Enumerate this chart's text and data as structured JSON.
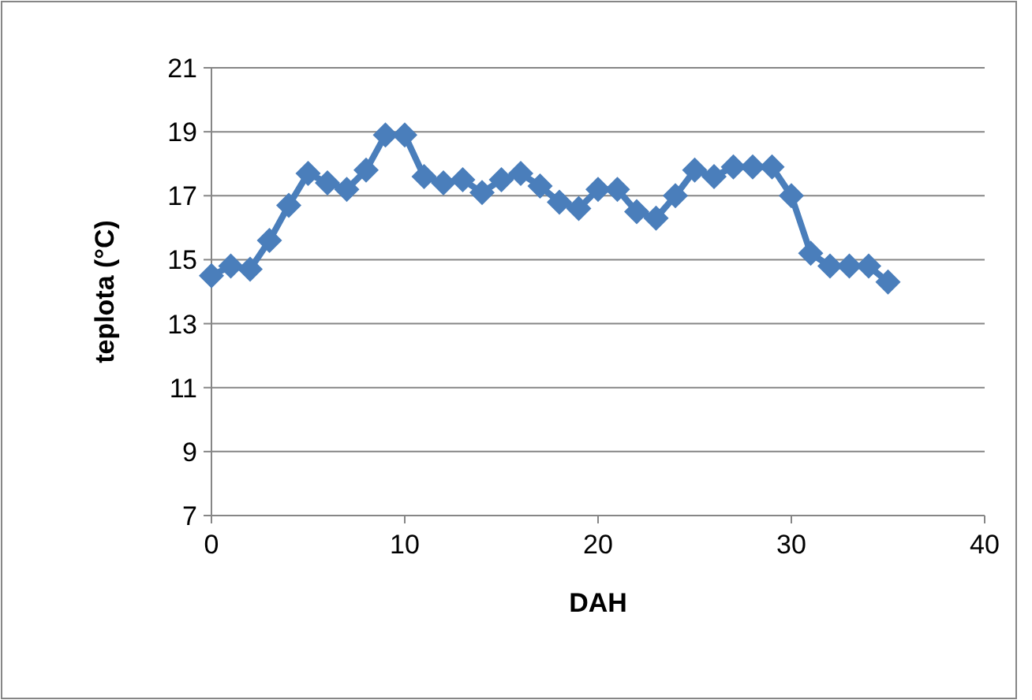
{
  "chart_data": {
    "type": "line",
    "xlabel": "DAH",
    "ylabel": "teplota (°C)",
    "x": [
      0,
      1,
      2,
      3,
      4,
      5,
      6,
      7,
      8,
      9,
      10,
      11,
      12,
      13,
      14,
      15,
      16,
      17,
      18,
      19,
      20,
      21,
      22,
      23,
      24,
      25,
      26,
      27,
      28,
      29,
      30,
      31,
      32,
      33,
      34,
      35
    ],
    "series": [
      {
        "color": "#4a7ebb",
        "values": [
          14.5,
          14.8,
          14.7,
          15.6,
          16.7,
          17.7,
          17.4,
          17.2,
          17.8,
          18.9,
          18.9,
          17.6,
          17.4,
          17.5,
          17.1,
          17.5,
          17.7,
          17.3,
          16.8,
          16.6,
          17.2,
          17.2,
          16.5,
          16.3,
          17.0,
          17.8,
          17.6,
          17.9,
          17.9,
          17.9,
          17.0,
          15.2,
          14.8,
          14.8,
          14.8,
          14.3
        ]
      }
    ],
    "xlim": [
      0,
      40
    ],
    "xticks": [
      0,
      10,
      20,
      30,
      40
    ],
    "ylim": [
      7,
      21
    ],
    "yticks": [
      7,
      9,
      11,
      13,
      15,
      17,
      19,
      21
    ],
    "grid": "y",
    "marker": "diamond",
    "line_style": "solid"
  }
}
